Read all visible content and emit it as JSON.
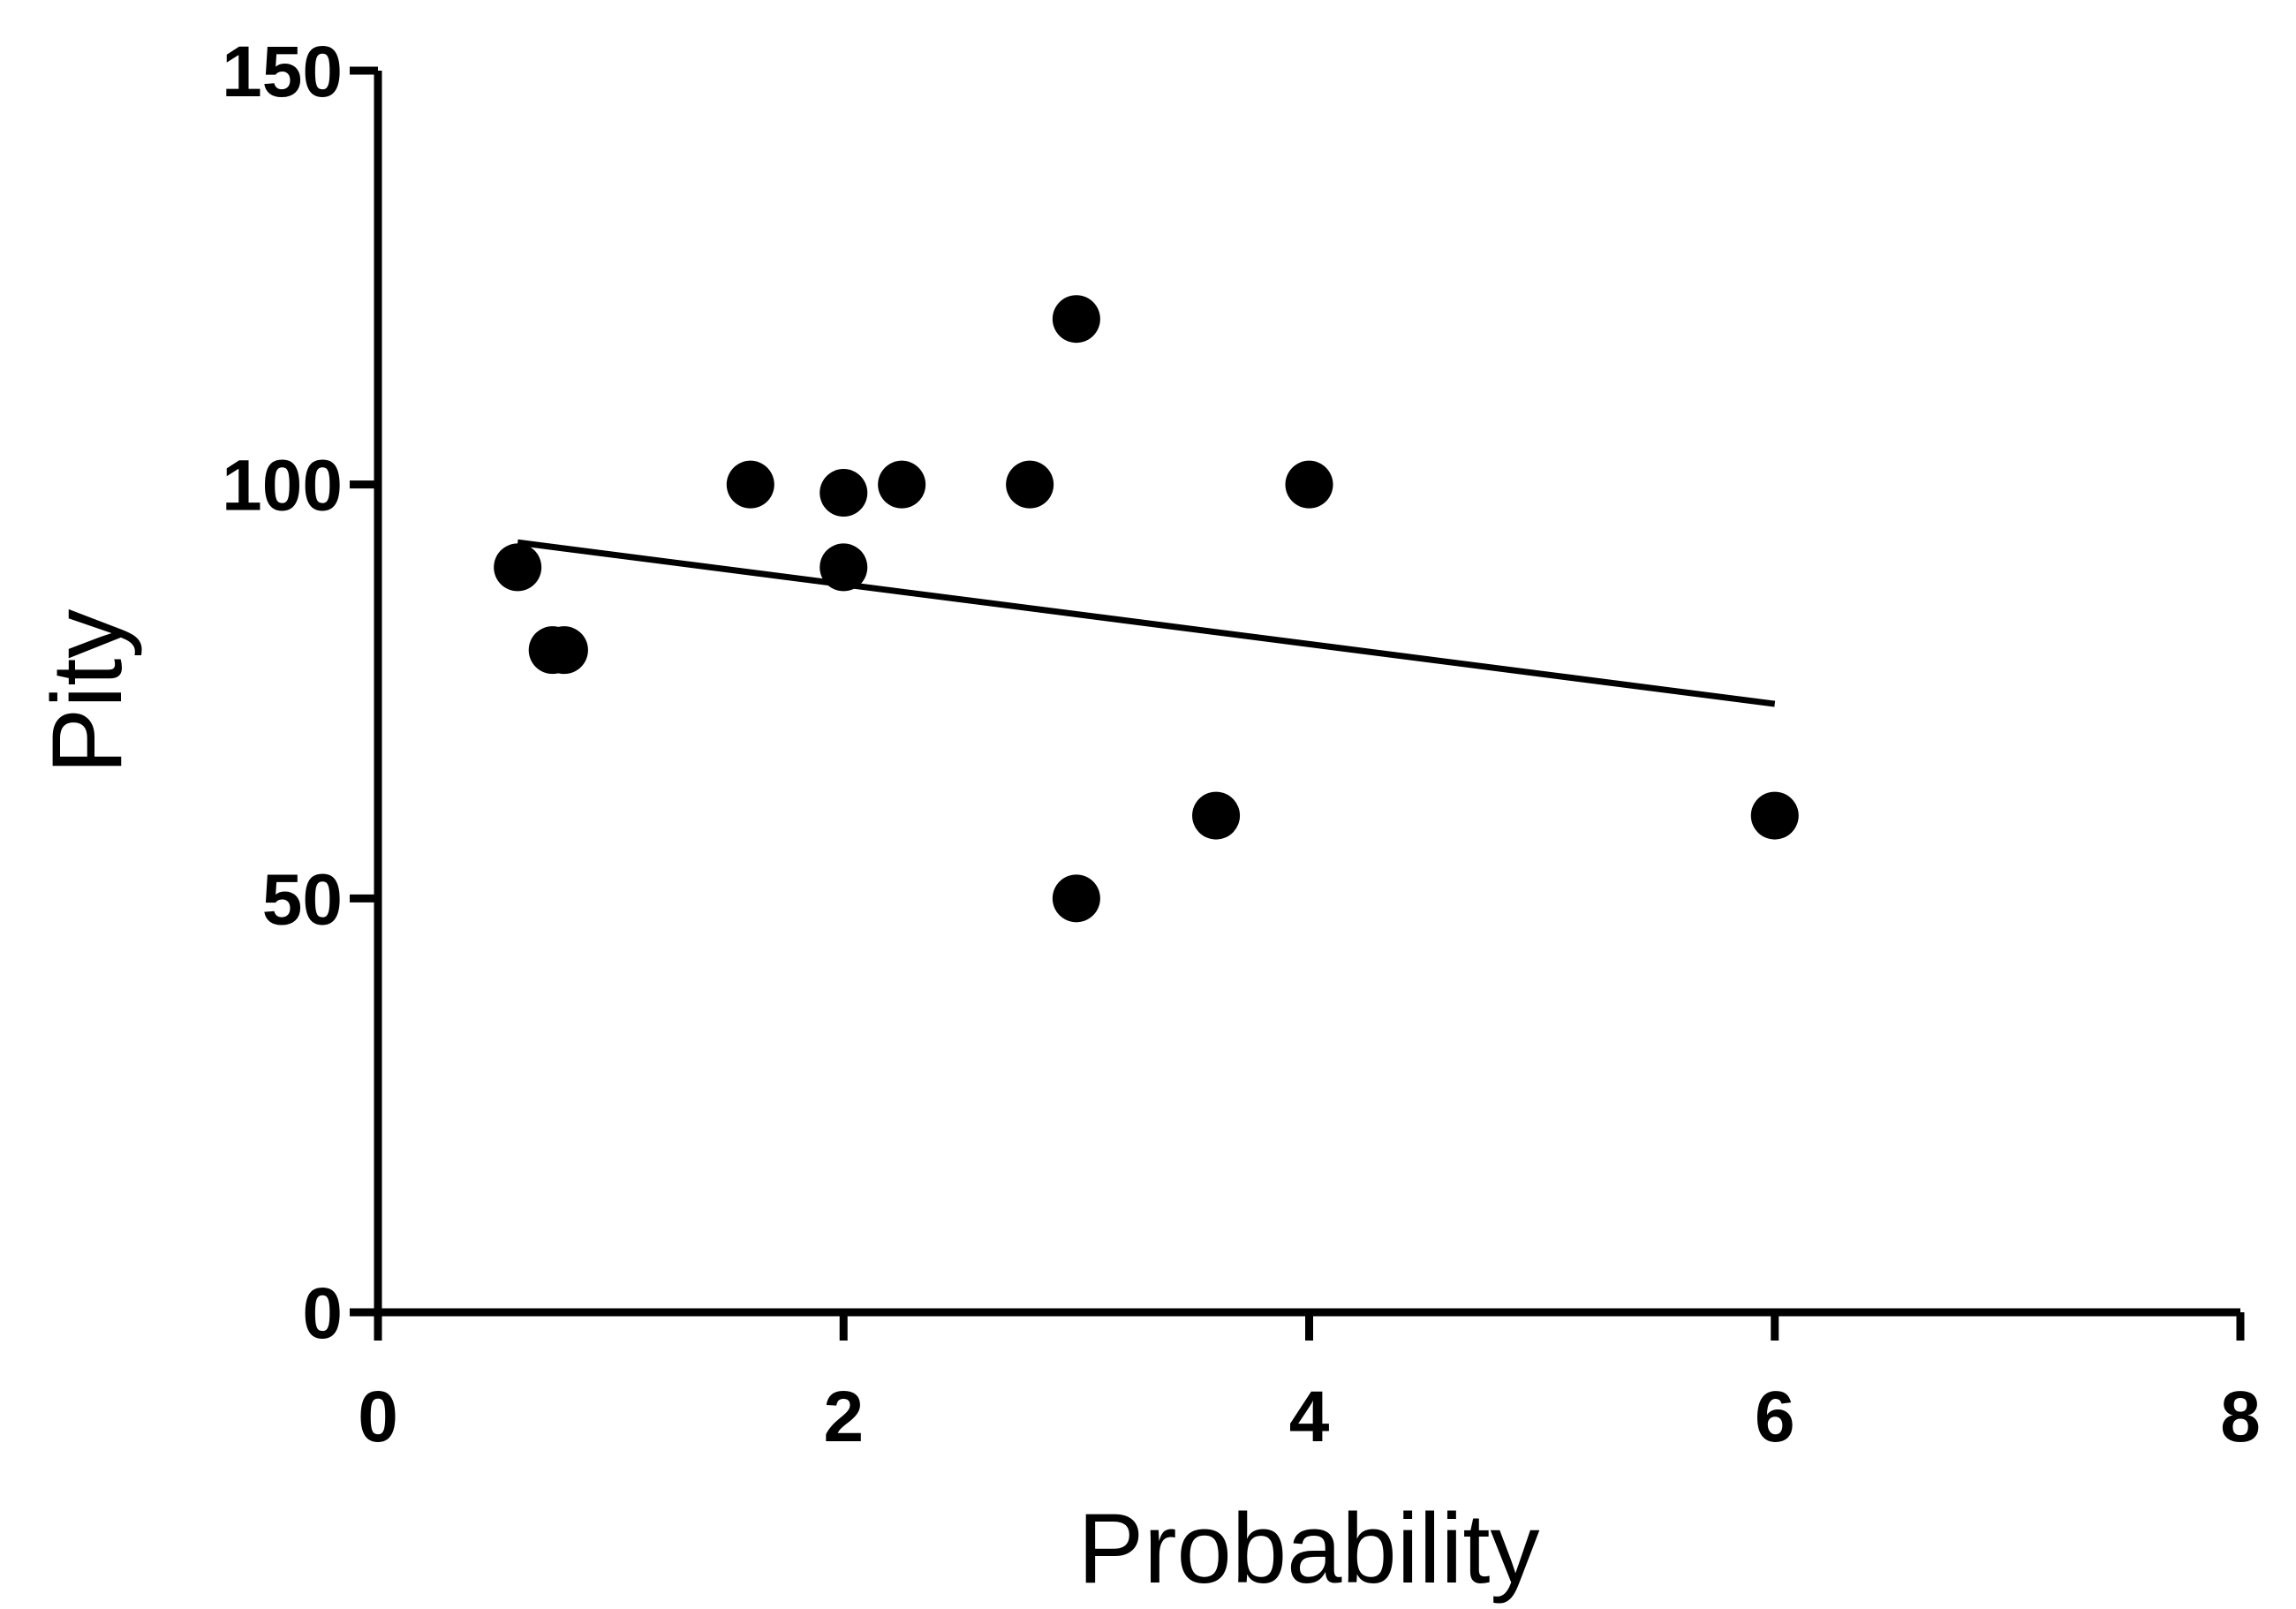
{
  "chart_data": {
    "type": "scatter",
    "title": "",
    "xlabel": "Probability",
    "ylabel": "Pity",
    "xlim": [
      0,
      8
    ],
    "ylim": [
      0,
      150
    ],
    "xticks": [
      0,
      2,
      4,
      6,
      8
    ],
    "yticks": [
      0,
      50,
      100,
      150
    ],
    "xtick_labels": [
      "0",
      "2",
      "4",
      "6",
      "8"
    ],
    "ytick_labels": [
      "0",
      "50",
      "100",
      "150"
    ],
    "grid": false,
    "legend": "none",
    "point_color": "#000000",
    "points": [
      {
        "x": 0.6,
        "y": 90
      },
      {
        "x": 0.75,
        "y": 80
      },
      {
        "x": 0.8,
        "y": 80
      },
      {
        "x": 1.6,
        "y": 100
      },
      {
        "x": 2.0,
        "y": 99
      },
      {
        "x": 2.0,
        "y": 90
      },
      {
        "x": 2.25,
        "y": 100
      },
      {
        "x": 2.8,
        "y": 100
      },
      {
        "x": 3.0,
        "y": 120
      },
      {
        "x": 3.0,
        "y": 50
      },
      {
        "x": 3.6,
        "y": 60
      },
      {
        "x": 4.0,
        "y": 100
      },
      {
        "x": 6.0,
        "y": 60
      }
    ],
    "fit_line": {
      "x": [
        0.6,
        6.0
      ],
      "y": [
        93,
        73.5
      ]
    }
  }
}
